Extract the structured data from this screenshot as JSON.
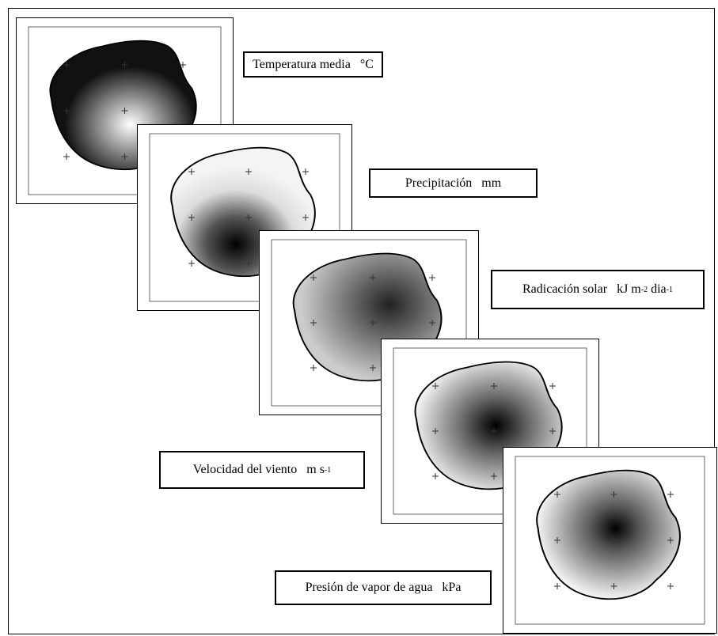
{
  "labels": [
    [
      "Temperatura media   °C"
    ],
    [
      "Precipitación   mm"
    ],
    [
      "Radicación solar   kJ m",
      "-2",
      " dia",
      "-1"
    ],
    [
      "Velocidad del viento   m s",
      "-1"
    ],
    [
      "Presión de vapor de agua   kPa"
    ]
  ]
}
